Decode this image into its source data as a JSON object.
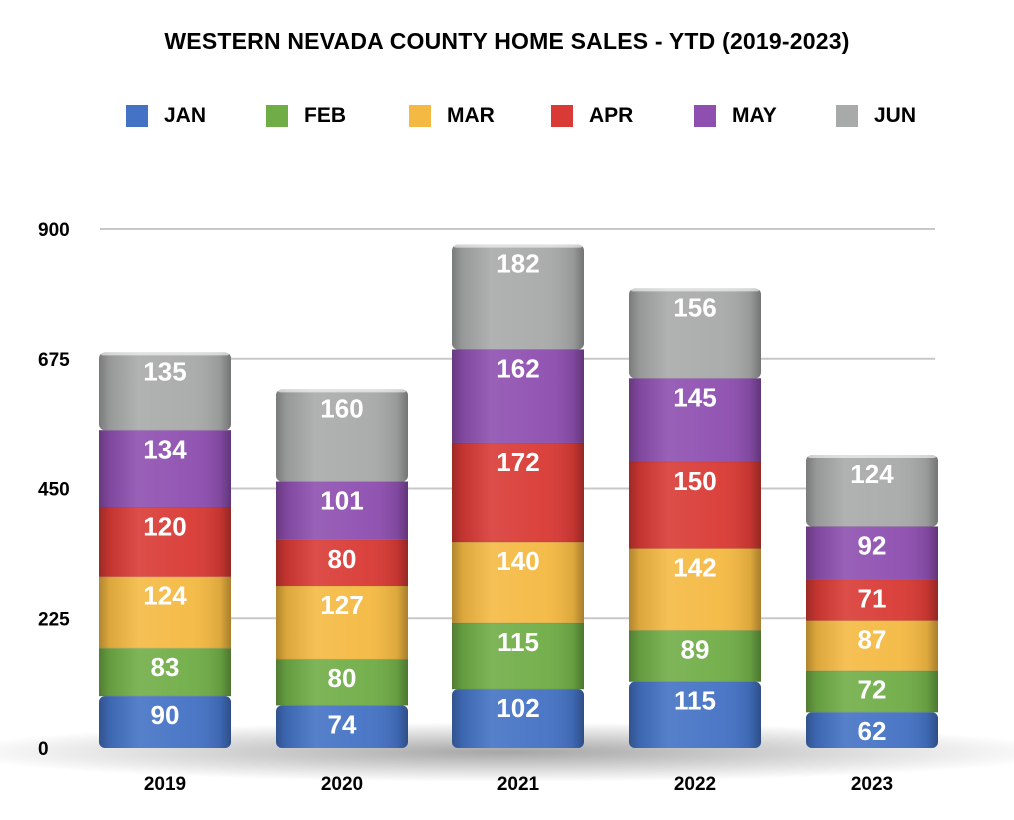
{
  "chart_data": {
    "type": "bar",
    "stacked": true,
    "title": "WESTERN NEVADA COUNTY HOME SALES - YTD (2019-2023)",
    "xlabel": "",
    "ylabel": "",
    "categories": [
      "2019",
      "2020",
      "2021",
      "2022",
      "2023"
    ],
    "yticks": [
      "0",
      "225",
      "450",
      "675",
      "900"
    ],
    "ylim": [
      0,
      900
    ],
    "grid": true,
    "legend_position": "top",
    "series": [
      {
        "name": "JAN",
        "color": "#4472C4",
        "values": [
          90,
          74,
          102,
          115,
          62
        ]
      },
      {
        "name": "FEB",
        "color": "#70AD47",
        "values": [
          83,
          80,
          115,
          89,
          72
        ]
      },
      {
        "name": "MAR",
        "color": "#F4B942",
        "values": [
          124,
          127,
          140,
          142,
          87
        ]
      },
      {
        "name": "APR",
        "color": "#D93A35",
        "values": [
          120,
          80,
          172,
          150,
          71
        ]
      },
      {
        "name": "MAY",
        "color": "#8E4FB0",
        "values": [
          134,
          101,
          162,
          145,
          92
        ]
      },
      {
        "name": "JUN",
        "color": "#A8AAAA",
        "values": [
          135,
          160,
          182,
          156,
          124
        ]
      }
    ]
  }
}
